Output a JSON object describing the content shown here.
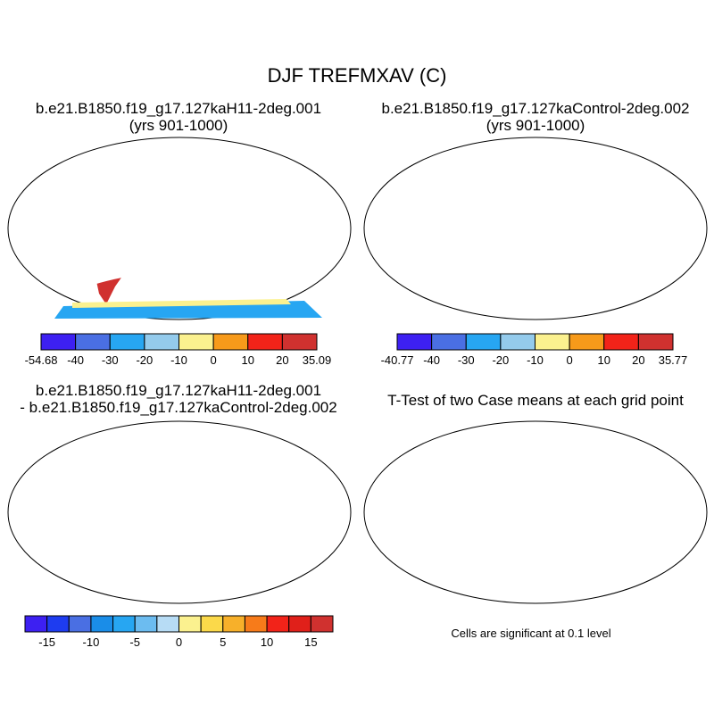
{
  "title": "DJF TREFMXAV (C)",
  "panels": {
    "p1": {
      "title": "b.e21.B1850.f19_g17.127kaH11-2deg.001",
      "subtitle": "(yrs 901-1000)"
    },
    "p2": {
      "title": "b.e21.B1850.f19_g17.127kaControl-2deg.002",
      "subtitle": "(yrs 901-1000)"
    },
    "p3": {
      "title": "b.e21.B1850.f19_g17.127kaH11-2deg.001",
      "subtitle": "- b.e21.B1850.f19_g17.127kaControl-2deg.002"
    },
    "p4": {
      "title": "T-Test of two Case means at each grid point"
    }
  },
  "colorbars": {
    "cb1": {
      "colors": [
        "#3d20f2",
        "#4a6fe3",
        "#27a6f2",
        "#94cbec",
        "#fbf18f",
        "#f79a1a",
        "#f22319",
        "#d0312f"
      ],
      "labels": [
        "-54.68",
        "-40",
        "-30",
        "-20",
        "-10",
        "0",
        "10",
        "20",
        "35.09"
      ]
    },
    "cb2": {
      "colors": [
        "#3d20f2",
        "#4a6fe3",
        "#27a6f2",
        "#94cbec",
        "#fbf18f",
        "#f79a1a",
        "#f22319",
        "#d0312f"
      ],
      "labels": [
        "-40.77",
        "-40",
        "-30",
        "-20",
        "-10",
        "0",
        "10",
        "20",
        "35.77"
      ]
    },
    "cb3": {
      "colors": [
        "#3d20f2",
        "#1e3cf0",
        "#4a6fe3",
        "#1a8de8",
        "#27a6f2",
        "#6cbcf0",
        "#b7dcf5",
        "#fbf18f",
        "#fbd94a",
        "#f7b02a",
        "#f77b1a",
        "#f22319",
        "#e0201a",
        "#d0312f"
      ],
      "labels": [
        "-15",
        "-10",
        "-5",
        "0",
        "5",
        "10",
        "15"
      ]
    }
  },
  "note": "Cells are significant at 0.1 level"
}
